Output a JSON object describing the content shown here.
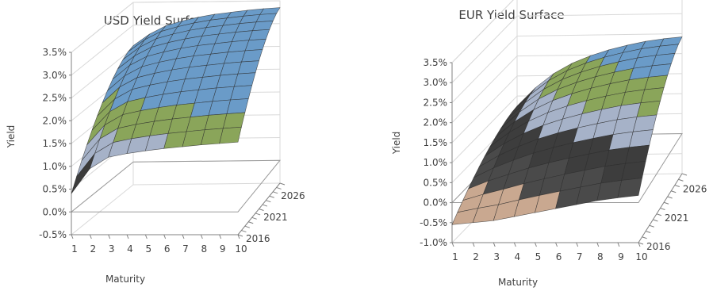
{
  "chart_data": [
    {
      "type": "surface",
      "title": "USD Yield Surface",
      "xlabel": "Maturity",
      "ylabel": "Yield",
      "depth_label": "",
      "x": [
        1,
        2,
        3,
        4,
        5,
        6,
        7,
        8,
        9,
        10
      ],
      "x_ticks": [
        "1",
        "2",
        "3",
        "4",
        "5",
        "6",
        "7",
        "8",
        "9",
        "10"
      ],
      "depth": [
        2016,
        2017,
        2018,
        2019,
        2020,
        2021,
        2022,
        2023,
        2024,
        2025,
        2026,
        2027,
        2028
      ],
      "depth_ticks": [
        "2016",
        "2021",
        "2026"
      ],
      "ylim": [
        -0.005,
        0.035
      ],
      "y_ticks": [
        "-0.5%",
        "0.0%",
        "0.5%",
        "1.0%",
        "1.5%",
        "2.0%",
        "2.5%",
        "3.0%",
        "3.5%"
      ],
      "front_curve": [
        0.004,
        0.0095,
        0.012,
        0.0128,
        0.0134,
        0.0139,
        0.0143,
        0.0147,
        0.015,
        0.0153
      ],
      "back_curve": [
        0.0255,
        0.028,
        0.0298,
        0.0308,
        0.0316,
        0.0322,
        0.0326,
        0.033,
        0.0333,
        0.0335
      ],
      "bands": [
        {
          "from": -0.005,
          "to": 0.005,
          "color": "#404040"
        },
        {
          "from": 0.005,
          "to": 0.01,
          "color": "#3b3b3b"
        },
        {
          "from": 0.01,
          "to": 0.015,
          "color": "#a6b2c8"
        },
        {
          "from": 0.015,
          "to": 0.02,
          "color": "#8aa55a"
        },
        {
          "from": 0.02,
          "to": 0.035,
          "color": "#6a9bc8"
        }
      ],
      "grid": true
    },
    {
      "type": "surface",
      "title": "EUR Yield Surface",
      "xlabel": "Maturity",
      "ylabel": "Yield",
      "depth_label": "",
      "x": [
        1,
        2,
        3,
        4,
        5,
        6,
        7,
        8,
        9,
        10
      ],
      "x_ticks": [
        "1",
        "2",
        "3",
        "4",
        "5",
        "6",
        "7",
        "8",
        "9",
        "10"
      ],
      "depth": [
        2016,
        2017,
        2018,
        2019,
        2020,
        2021,
        2022,
        2023,
        2024,
        2025,
        2026,
        2027,
        2028
      ],
      "depth_ticks": [
        "2016",
        "2021",
        "2026"
      ],
      "ylim": [
        -0.01,
        0.035
      ],
      "y_ticks": [
        "-1.0%",
        "-0.5%",
        "0.0%",
        "0.5%",
        "1.0%",
        "1.5%",
        "2.0%",
        "2.5%",
        "3.0%",
        "3.5%"
      ],
      "front_curve": [
        -0.0055,
        -0.005,
        -0.0045,
        -0.0035,
        -0.0025,
        -0.0015,
        -0.0005,
        0.0005,
        0.0012,
        0.0018
      ],
      "back_curve": [
        0.0075,
        0.012,
        0.0155,
        0.018,
        0.0198,
        0.0212,
        0.0223,
        0.0232,
        0.0238,
        0.0242
      ],
      "bands": [
        {
          "from": -0.01,
          "to": 0.0,
          "color": "#c9a890"
        },
        {
          "from": 0.0,
          "to": 0.005,
          "color": "#4a4a4a"
        },
        {
          "from": 0.005,
          "to": 0.01,
          "color": "#3d3d3d"
        },
        {
          "from": 0.01,
          "to": 0.015,
          "color": "#a6b2c8"
        },
        {
          "from": 0.015,
          "to": 0.02,
          "color": "#8aa55a"
        },
        {
          "from": 0.02,
          "to": 0.035,
          "color": "#6a9bc8"
        }
      ],
      "grid": true
    }
  ]
}
